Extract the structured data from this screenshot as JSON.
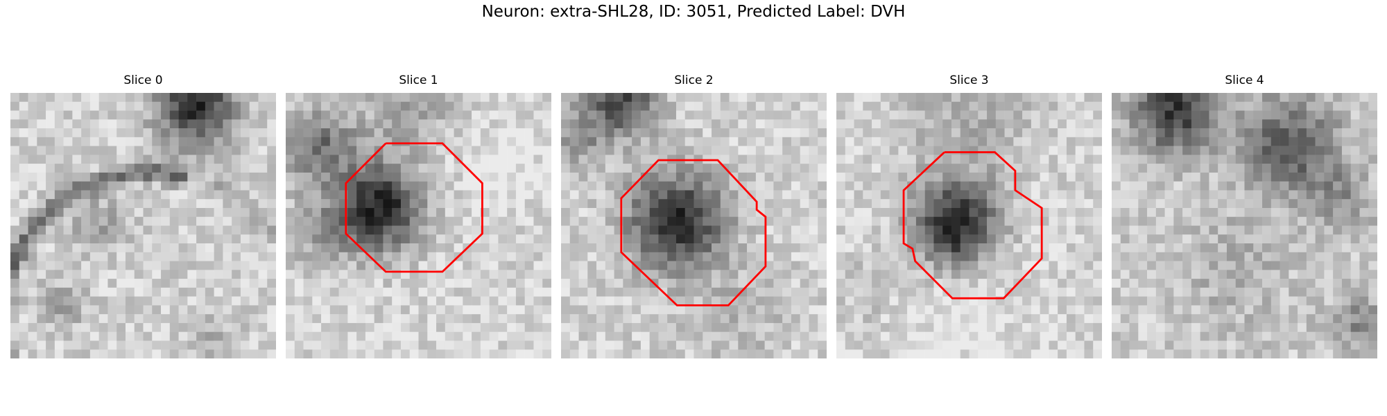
{
  "figure": {
    "title": "Neuron: extra-SHL28, ID: 3051, Predicted Label: DVH"
  },
  "panels": [
    {
      "title": "Slice 0",
      "has_roi": false
    },
    {
      "title": "Slice 1",
      "has_roi": true
    },
    {
      "title": "Slice 2",
      "has_roi": true
    },
    {
      "title": "Slice 3",
      "has_roi": true
    },
    {
      "title": "Slice 4",
      "has_roi": false
    }
  ],
  "colors": {
    "roi_outline": "#ff0000",
    "background": "#ffffff",
    "colormap": "grayscale"
  }
}
